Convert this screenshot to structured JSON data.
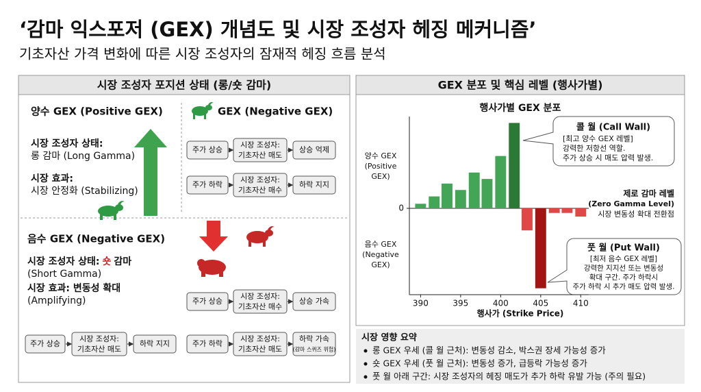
{
  "title": "‘감마 익스포저 (GEX) 개념도 및 시장 조성자 헤징 메커니즘’",
  "subtitle": "기초자산 가격 변화에 따른 시장 조성자의 잠재적 헤징 흐름 분석",
  "left_panel": {
    "header": "시장 조성자 포지션 상태 (롱/숏 감마)",
    "positive": {
      "heading": "양수 GEX (Positive GEX)",
      "state_label": "시장 조성자 상태:",
      "state": "롱 감마 (Long Gamma)",
      "effect_label": "시장 효과:",
      "effect": "시장 안정화 (Stabilizing)",
      "flows_heading": "GEX (Negative GEX)",
      "flows": [
        [
          "주가 상승",
          [
            "시장 조성자:",
            "기초자산 매도"
          ],
          "상승 억제"
        ],
        [
          "주가 하락",
          [
            "시장 조성자:",
            "기초자산 매수"
          ],
          "하락 지지"
        ]
      ]
    },
    "negative": {
      "heading": "음수 GEX (Negative GEX)",
      "state_label": "시장 조성자 상태:",
      "state": "숏",
      "state_rest": "감마",
      "state_en": "(Short Gamma)",
      "effect_label": "시장 효과: 변동성 확대",
      "effect_en": "(Amplifying)",
      "flows": [
        [
          "주가 상승",
          [
            "시장 조성자:",
            "기초자산 매수"
          ],
          "상승 가속"
        ],
        [
          "주가 하락",
          [
            "시장 조성자:",
            "기초자산 매도"
          ],
          [
            "하락 가속",
            "(감마 스퀴즈 위험)"
          ]
        ],
        [
          "주가 상승",
          [
            "시장 조성자:",
            "기초자산 매도"
          ],
          "하락 지지"
        ]
      ]
    }
  },
  "right_panel": {
    "header": "GEX 분포 및 핵심 레벨 (행사가별)"
  },
  "chart_data": {
    "type": "bar",
    "title": "행사가별 GEX 분포",
    "x": [
      390,
      391.7,
      393.3,
      395,
      396.7,
      398.3,
      400,
      401.7,
      403.3,
      405,
      406.7,
      408.3,
      410
    ],
    "values": [
      5,
      13,
      27,
      20,
      39,
      32,
      57,
      93,
      -24,
      -87,
      -5,
      -5,
      -9
    ],
    "colors": [
      "#43a657",
      "#43a657",
      "#43a657",
      "#43a657",
      "#43a657",
      "#43a657",
      "#43a657",
      "#2a7a36",
      "#e04848",
      "#a31515",
      "#e04848",
      "#e04848",
      "#e04848"
    ],
    "xlim": [
      388.6,
      411
    ],
    "xticks": [
      390,
      395,
      400,
      405,
      410
    ],
    "ylim": [
      -94,
      100
    ],
    "yticks": [
      0
    ],
    "xlabel": "행사가 (Strike Price)",
    "ylabel_positive": [
      "양수 GEX",
      "(Positive",
      "GEX)"
    ],
    "ylabel_negative": [
      "음수 GEX",
      "(Negative",
      "GEX)"
    ],
    "annotations": [
      {
        "title": "콜 월 (Call Wall)",
        "lines": [
          "[최고 양수 GEX 레벨]",
          "강력한 저항선 역할.",
          "주가 상승 시 매도 압력 발생."
        ]
      },
      {
        "title": "제로 감마 레벨",
        "lines": [
          "(Zero Gamma Level)",
          "시장 변동성 확대 전환점"
        ]
      },
      {
        "title": "풋 월 (Put Wall)",
        "lines": [
          "[최저 음수 GEX 레벨]",
          "강력한 지지선 또는 변동성",
          "확대 구간. 주가 하락시",
          "주가 하락 시 추가 매도 압력 발생."
        ]
      }
    ]
  },
  "summary": {
    "heading": "시장 영향 요약",
    "items": [
      "롱 GEX 우세 (콜 월 근처): 변동성 감소, 박스권 장세 가능성 증가",
      "숏 GEX 우세 (풋 월 근처): 변동성 증가, 급등락 가능성 증가",
      "풋 월 아래 구간: 시장 조성자의 헤징 매도가 추가 하락 유발 가능 (주의 필요)"
    ]
  }
}
